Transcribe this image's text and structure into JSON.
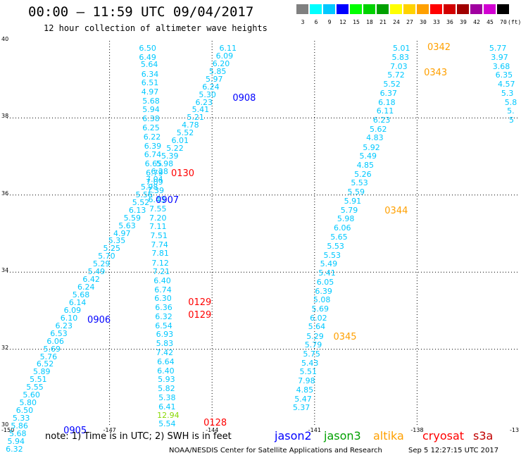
{
  "title": "00:00 – 11:59 UTC 09/04/2017",
  "subtitle": "12 hour collection of altimeter wave heights",
  "colorbar": {
    "colors": [
      "#808080",
      "#00ffff",
      "#00c8ff",
      "#0000ff",
      "#00ff00",
      "#00d200",
      "#00a000",
      "#ffff00",
      "#ffd200",
      "#ffa000",
      "#ff0000",
      "#d20000",
      "#a00000",
      "#a000a0",
      "#d200d2",
      "#000000"
    ],
    "labels": [
      "3",
      "6",
      "9",
      "12",
      "15",
      "18",
      "21",
      "24",
      "27",
      "30",
      "33",
      "36",
      "39",
      "42",
      "45",
      "70"
    ],
    "unit": "(ft)"
  },
  "map": {
    "lat_range": [
      30,
      40
    ],
    "lon_range": [
      -150,
      -135
    ],
    "lat_ticks": [
      "40",
      "38",
      "36",
      "34",
      "32",
      "30"
    ],
    "lon_ticks": [
      "-150",
      "-147",
      "-144",
      "-141",
      "-138",
      "-13"
    ],
    "value_color": "#00c8ff",
    "tracks": [
      {
        "name": "track-a",
        "points": [
          {
            "lon": -145.85,
            "lat": 39.8,
            "v": "6.50"
          },
          {
            "lon": -145.85,
            "lat": 39.57,
            "v": "6.49"
          },
          {
            "lon": -145.8,
            "lat": 39.37,
            "v": "5.64"
          },
          {
            "lon": -145.78,
            "lat": 39.13,
            "v": "6.34"
          },
          {
            "lon": -145.78,
            "lat": 38.9,
            "v": "6.51"
          },
          {
            "lon": -145.78,
            "lat": 38.67,
            "v": "4.97"
          },
          {
            "lon": -145.75,
            "lat": 38.43,
            "v": "5.68"
          },
          {
            "lon": -145.75,
            "lat": 38.2,
            "v": "5.94"
          },
          {
            "lon": -145.75,
            "lat": 37.97,
            "v": "6.38"
          },
          {
            "lon": -145.75,
            "lat": 37.73,
            "v": "6.25"
          },
          {
            "lon": -145.72,
            "lat": 37.5,
            "v": "6.22"
          },
          {
            "lon": -145.7,
            "lat": 37.26,
            "v": "6.39"
          },
          {
            "lon": -145.7,
            "lat": 37.03,
            "v": "6.74"
          },
          {
            "lon": -145.68,
            "lat": 36.8,
            "v": "6.65"
          },
          {
            "lon": -145.65,
            "lat": 36.57,
            "v": "6.79"
          },
          {
            "lon": -145.65,
            "lat": 36.33,
            "v": "7.09"
          },
          {
            "lon": -145.62,
            "lat": 36.1,
            "v": "7.39"
          },
          {
            "lon": -145.58,
            "lat": 35.87,
            "v": "6.43"
          },
          {
            "lon": -145.55,
            "lat": 35.63,
            "v": "7.55"
          },
          {
            "lon": -145.55,
            "lat": 35.4,
            "v": "7.20"
          },
          {
            "lon": -145.55,
            "lat": 35.17,
            "v": "7.11"
          },
          {
            "lon": -145.52,
            "lat": 34.93,
            "v": "7.51"
          },
          {
            "lon": -145.5,
            "lat": 34.7,
            "v": "7.74"
          },
          {
            "lon": -145.48,
            "lat": 34.47,
            "v": "7.81"
          },
          {
            "lon": -145.48,
            "lat": 34.23,
            "v": "7.12"
          },
          {
            "lon": -145.45,
            "lat": 34.0,
            "v": "7.21"
          },
          {
            "lon": -145.42,
            "lat": 33.77,
            "v": "6.40"
          },
          {
            "lon": -145.4,
            "lat": 33.53,
            "v": "6.74"
          },
          {
            "lon": -145.4,
            "lat": 33.3,
            "v": "6.30"
          },
          {
            "lon": -145.38,
            "lat": 33.07,
            "v": "6.36"
          },
          {
            "lon": -145.38,
            "lat": 32.83,
            "v": "6.32"
          },
          {
            "lon": -145.38,
            "lat": 32.6,
            "v": "6.54"
          },
          {
            "lon": -145.35,
            "lat": 32.37,
            "v": "6.93"
          },
          {
            "lon": -145.35,
            "lat": 32.13,
            "v": "5.83"
          },
          {
            "lon": -145.35,
            "lat": 31.9,
            "v": "7.42"
          },
          {
            "lon": -145.32,
            "lat": 31.67,
            "v": "6.64"
          },
          {
            "lon": -145.32,
            "lat": 31.43,
            "v": "6.40"
          },
          {
            "lon": -145.3,
            "lat": 31.2,
            "v": "5.93"
          },
          {
            "lon": -145.3,
            "lat": 30.97,
            "v": "5.82"
          },
          {
            "lon": -145.28,
            "lat": 30.73,
            "v": "5.38"
          },
          {
            "lon": -145.28,
            "lat": 30.5,
            "v": "6.41"
          },
          {
            "lon": -145.32,
            "lat": 30.28,
            "v": "12.94",
            "c": "#88d800"
          },
          {
            "lon": -145.28,
            "lat": 30.05,
            "v": "5.54"
          }
        ]
      },
      {
        "name": "track-b",
        "points": [
          {
            "lon": -143.5,
            "lat": 39.8,
            "v": "6.11"
          },
          {
            "lon": -143.6,
            "lat": 39.6,
            "v": "6.09"
          },
          {
            "lon": -143.7,
            "lat": 39.4,
            "v": "6.20"
          },
          {
            "lon": -143.8,
            "lat": 39.2,
            "v": "5.85"
          },
          {
            "lon": -143.9,
            "lat": 39.0,
            "v": "5.97"
          },
          {
            "lon": -144.0,
            "lat": 38.8,
            "v": "6.24"
          },
          {
            "lon": -144.1,
            "lat": 38.6,
            "v": "5.30"
          },
          {
            "lon": -144.2,
            "lat": 38.4,
            "v": "6.23"
          },
          {
            "lon": -144.3,
            "lat": 38.2,
            "v": "5.41"
          },
          {
            "lon": -144.45,
            "lat": 38.0,
            "v": "5.21"
          },
          {
            "lon": -144.6,
            "lat": 37.8,
            "v": "4.78"
          },
          {
            "lon": -144.75,
            "lat": 37.6,
            "v": "5.52"
          },
          {
            "lon": -144.9,
            "lat": 37.4,
            "v": "6.01"
          },
          {
            "lon": -145.05,
            "lat": 37.2,
            "v": "5.22"
          },
          {
            "lon": -145.2,
            "lat": 37.0,
            "v": "5.39"
          },
          {
            "lon": -145.35,
            "lat": 36.8,
            "v": "5.98"
          },
          {
            "lon": -145.5,
            "lat": 36.6,
            "v": "6.28"
          },
          {
            "lon": -145.65,
            "lat": 36.4,
            "v": "7.04"
          },
          {
            "lon": -145.8,
            "lat": 36.2,
            "v": "5.98"
          },
          {
            "lon": -145.95,
            "lat": 36.0,
            "v": "5.56"
          },
          {
            "lon": -146.05,
            "lat": 35.8,
            "v": "5.52"
          },
          {
            "lon": -146.15,
            "lat": 35.6,
            "v": "6.13"
          },
          {
            "lon": -146.3,
            "lat": 35.4,
            "v": "5.59"
          },
          {
            "lon": -146.45,
            "lat": 35.2,
            "v": "5.63"
          },
          {
            "lon": -146.6,
            "lat": 35.0,
            "v": "4.97"
          },
          {
            "lon": -146.75,
            "lat": 34.8,
            "v": "5.35"
          },
          {
            "lon": -146.9,
            "lat": 34.6,
            "v": "5.25"
          },
          {
            "lon": -147.05,
            "lat": 34.4,
            "v": "5.70"
          },
          {
            "lon": -147.2,
            "lat": 34.2,
            "v": "5.29"
          },
          {
            "lon": -147.35,
            "lat": 34.0,
            "v": "5.49"
          },
          {
            "lon": -147.5,
            "lat": 33.8,
            "v": "6.42"
          },
          {
            "lon": -147.65,
            "lat": 33.6,
            "v": "6.24"
          },
          {
            "lon": -147.8,
            "lat": 33.4,
            "v": "5.68"
          },
          {
            "lon": -147.9,
            "lat": 33.2,
            "v": "6.14"
          },
          {
            "lon": -148.05,
            "lat": 33.0,
            "v": "6.09"
          },
          {
            "lon": -148.15,
            "lat": 32.8,
            "v": "6.10"
          },
          {
            "lon": -148.3,
            "lat": 32.6,
            "v": "6.23"
          },
          {
            "lon": -148.45,
            "lat": 32.4,
            "v": "6.53"
          },
          {
            "lon": -148.55,
            "lat": 32.2,
            "v": "6.06"
          },
          {
            "lon": -148.65,
            "lat": 32.0,
            "v": "5.69"
          },
          {
            "lon": -148.75,
            "lat": 31.8,
            "v": "5.76"
          },
          {
            "lon": -148.85,
            "lat": 31.6,
            "v": "6.52"
          },
          {
            "lon": -148.95,
            "lat": 31.4,
            "v": "5.89"
          },
          {
            "lon": -149.05,
            "lat": 31.2,
            "v": "5.51"
          },
          {
            "lon": -149.15,
            "lat": 31.0,
            "v": "5.55"
          },
          {
            "lon": -149.25,
            "lat": 30.8,
            "v": "5.60"
          },
          {
            "lon": -149.35,
            "lat": 30.6,
            "v": "5.80"
          },
          {
            "lon": -149.45,
            "lat": 30.4,
            "v": "6.50"
          },
          {
            "lon": -149.55,
            "lat": 30.2,
            "v": "5.33"
          },
          {
            "lon": -149.6,
            "lat": 30.0,
            "v": "5.86"
          },
          {
            "lon": -149.65,
            "lat": 29.8,
            "v": "5.68"
          },
          {
            "lon": -149.7,
            "lat": 29.6,
            "v": "5.94"
          },
          {
            "lon": -149.75,
            "lat": 29.4,
            "v": "6.32"
          }
        ]
      },
      {
        "name": "track-c",
        "points": [
          {
            "lon": -138.42,
            "lat": 39.8,
            "v": "5.01"
          },
          {
            "lon": -138.45,
            "lat": 39.57,
            "v": "5.83"
          },
          {
            "lon": -138.5,
            "lat": 39.33,
            "v": "7.03"
          },
          {
            "lon": -138.58,
            "lat": 39.1,
            "v": "5.72"
          },
          {
            "lon": -138.7,
            "lat": 38.87,
            "v": "5.52"
          },
          {
            "lon": -138.8,
            "lat": 38.63,
            "v": "6.37"
          },
          {
            "lon": -138.85,
            "lat": 38.4,
            "v": "6.18"
          },
          {
            "lon": -138.9,
            "lat": 38.17,
            "v": "6.11"
          },
          {
            "lon": -139.0,
            "lat": 37.93,
            "v": "6.23"
          },
          {
            "lon": -139.1,
            "lat": 37.7,
            "v": "5.62"
          },
          {
            "lon": -139.2,
            "lat": 37.47,
            "v": "4.83"
          },
          {
            "lon": -139.3,
            "lat": 37.23,
            "v": "5.92"
          },
          {
            "lon": -139.4,
            "lat": 37.0,
            "v": "5.49"
          },
          {
            "lon": -139.48,
            "lat": 36.77,
            "v": "4.85"
          },
          {
            "lon": -139.55,
            "lat": 36.53,
            "v": "5.26"
          },
          {
            "lon": -139.65,
            "lat": 36.3,
            "v": "5.53"
          },
          {
            "lon": -139.75,
            "lat": 36.07,
            "v": "5.59"
          },
          {
            "lon": -139.85,
            "lat": 35.83,
            "v": "5.91"
          },
          {
            "lon": -139.95,
            "lat": 35.6,
            "v": "5.79"
          },
          {
            "lon": -140.05,
            "lat": 35.37,
            "v": "5.98"
          },
          {
            "lon": -140.15,
            "lat": 35.13,
            "v": "6.06"
          },
          {
            "lon": -140.25,
            "lat": 34.9,
            "v": "5.65"
          },
          {
            "lon": -140.35,
            "lat": 34.67,
            "v": "5.53"
          },
          {
            "lon": -140.45,
            "lat": 34.43,
            "v": "5.53"
          },
          {
            "lon": -140.55,
            "lat": 34.2,
            "v": "5.49"
          },
          {
            "lon": -140.6,
            "lat": 33.97,
            "v": "5.41"
          },
          {
            "lon": -140.65,
            "lat": 33.73,
            "v": "6.05"
          },
          {
            "lon": -140.7,
            "lat": 33.5,
            "v": "6.39"
          },
          {
            "lon": -140.75,
            "lat": 33.27,
            "v": "5.08"
          },
          {
            "lon": -140.8,
            "lat": 33.03,
            "v": "5.69"
          },
          {
            "lon": -140.85,
            "lat": 32.8,
            "v": "6.02"
          },
          {
            "lon": -140.9,
            "lat": 32.57,
            "v": "5.64"
          },
          {
            "lon": -140.95,
            "lat": 32.33,
            "v": "5.29"
          },
          {
            "lon": -141.0,
            "lat": 32.1,
            "v": "5.79"
          },
          {
            "lon": -141.05,
            "lat": 31.87,
            "v": "5.75"
          },
          {
            "lon": -141.1,
            "lat": 31.63,
            "v": "5.43"
          },
          {
            "lon": -141.15,
            "lat": 31.4,
            "v": "5.51"
          },
          {
            "lon": -141.2,
            "lat": 31.17,
            "v": "7.98"
          },
          {
            "lon": -141.25,
            "lat": 30.93,
            "v": "4.85"
          },
          {
            "lon": -141.3,
            "lat": 30.7,
            "v": "5.47"
          },
          {
            "lon": -141.35,
            "lat": 30.47,
            "v": "5.37"
          }
        ]
      },
      {
        "name": "track-d",
        "points": [
          {
            "lon": -135.6,
            "lat": 39.8,
            "v": "5.77"
          },
          {
            "lon": -135.55,
            "lat": 39.57,
            "v": "3.97"
          },
          {
            "lon": -135.5,
            "lat": 39.33,
            "v": "3.68"
          },
          {
            "lon": -135.42,
            "lat": 39.1,
            "v": "6.35"
          },
          {
            "lon": -135.35,
            "lat": 38.87,
            "v": "4.57"
          },
          {
            "lon": -135.25,
            "lat": 38.63,
            "v": "5.3"
          },
          {
            "lon": -135.15,
            "lat": 38.4,
            "v": "5.8"
          },
          {
            "lon": -135.08,
            "lat": 38.17,
            "v": "5."
          },
          {
            "lon": -135.02,
            "lat": 37.93,
            "v": "5"
          }
        ]
      }
    ],
    "times": [
      {
        "lon": -143.4,
        "lat": 38.5,
        "t": "0908",
        "c": "#0000ff"
      },
      {
        "lon": -145.2,
        "lat": 36.55,
        "t": "0130",
        "c": "#ff0000"
      },
      {
        "lon": -145.65,
        "lat": 35.85,
        "t": "0907",
        "c": "#0000ff"
      },
      {
        "lon": -144.7,
        "lat": 33.2,
        "t": "0129",
        "c": "#ff0000"
      },
      {
        "lon": -144.7,
        "lat": 32.87,
        "t": "0129",
        "c": "#ff0000"
      },
      {
        "lon": -147.65,
        "lat": 32.75,
        "t": "0906",
        "c": "#0000ff"
      },
      {
        "lon": -144.25,
        "lat": 30.08,
        "t": "0128",
        "c": "#ff0000"
      },
      {
        "lon": -148.35,
        "lat": 29.87,
        "t": "0905",
        "c": "#0000ff"
      },
      {
        "lon": -137.7,
        "lat": 39.82,
        "t": "0342",
        "c": "#ffa000"
      },
      {
        "lon": -137.8,
        "lat": 39.15,
        "t": "0343",
        "c": "#ffa000"
      },
      {
        "lon": -138.95,
        "lat": 35.57,
        "t": "0344",
        "c": "#ffa000"
      },
      {
        "lon": -140.45,
        "lat": 32.3,
        "t": "0345",
        "c": "#ffa000"
      }
    ]
  },
  "note": "note: 1) Time is in UTC; 2) SWH is in feet",
  "satellites": [
    {
      "name": "jason2",
      "color": "#0000ff"
    },
    {
      "name": "jason3",
      "color": "#00a000"
    },
    {
      "name": "altika",
      "color": "#ffa000"
    },
    {
      "name": "cryosat",
      "color": "#ff0000"
    },
    {
      "name": "s3a",
      "color": "#c00000"
    }
  ],
  "credit": "NOAA/NESDIS Center for Satellite Applications and Research",
  "credit_time": "Sep  5 12:27:15 UTC 2017"
}
